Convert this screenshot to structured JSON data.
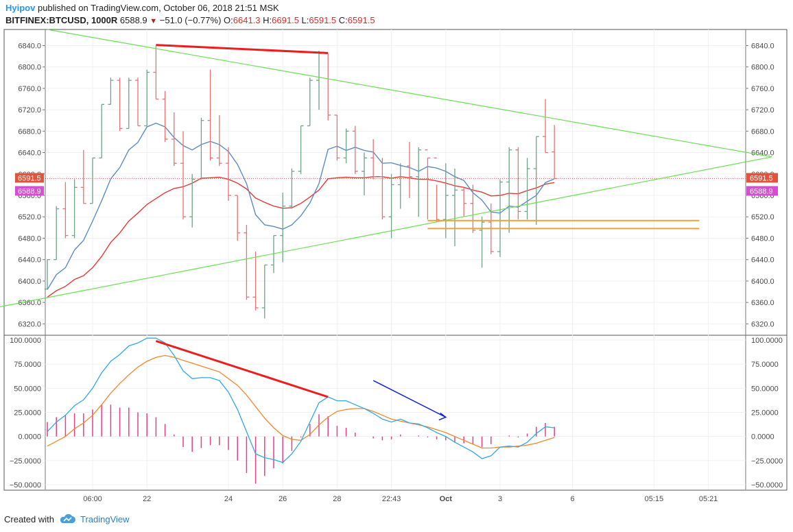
{
  "header": {
    "author": "Hyipov",
    "published_text": "published on TradingView.com, October 06, 2018 21:51 MSK",
    "symbol": "BITFINEX:BTCUSD, 1000R",
    "last": "6588.9",
    "change": "−51.0 (−0.77%)",
    "o_label": "O:",
    "o_value": "6641.3",
    "h_label": "H:",
    "h_value": "6691.5",
    "l_label": "L:",
    "l_value": "6591.5",
    "c_label": "C:",
    "c_value": "6591.5"
  },
  "footer": {
    "created_with": "Created with",
    "brand": "TradingView"
  },
  "colors": {
    "bull": "#6fa287",
    "bear": "#e57373",
    "ma_fast": "#5b8cc4",
    "ma_slow": "#e53935",
    "triangle": "#66e04f",
    "divergence": "#ee1c1c",
    "support": "#f0a030",
    "macd": "#2ea8e8",
    "signal": "#f5862a",
    "hist": "#e0408a",
    "arrow": "#1020e0",
    "tag_red": "#e0533d",
    "tag_magenta": "#d64fd0"
  },
  "chart_data": [
    {
      "type": "ohlc",
      "ylim": [
        6300,
        6870
      ],
      "yticks": [
        "6840.0",
        "6800.0",
        "6760.0",
        "6720.0",
        "6680.0",
        "6640.0",
        "6600.0",
        "6560.0",
        "6520.0",
        "6480.0",
        "6440.0",
        "6400.0",
        "6360.0",
        "6320.0"
      ],
      "xticks": [
        "06:00",
        "22",
        "24",
        "26",
        "28",
        "22:43",
        "Oct",
        "3",
        "6",
        "05:15",
        "05:21"
      ],
      "price_tags": [
        {
          "label": "6591.5",
          "value": 6591.5,
          "color": "tag_red"
        },
        {
          "label": "6588.9",
          "value": 6588.9,
          "color": "tag_magenta"
        }
      ],
      "bars": [
        [
          6385,
          6440,
          6385,
          6440
        ],
        [
          6440,
          6540,
          6440,
          6535
        ],
        [
          6535,
          6585,
          6480,
          6485
        ],
        [
          6485,
          6590,
          6480,
          6575
        ],
        [
          6575,
          6645,
          6545,
          6545
        ],
        [
          6545,
          6630,
          6545,
          6630
        ],
        [
          6630,
          6730,
          6630,
          6730
        ],
        [
          6730,
          6780,
          6730,
          6775
        ],
        [
          6775,
          6780,
          6680,
          6685
        ],
        [
          6685,
          6780,
          6685,
          6775
        ],
        [
          6775,
          6780,
          6690,
          6690
        ],
        [
          6690,
          6795,
          6690,
          6790
        ],
        [
          6790,
          6840,
          6740,
          6740
        ],
        [
          6740,
          6755,
          6660,
          6665
        ],
        [
          6665,
          6715,
          6615,
          6620
        ],
        [
          6620,
          6680,
          6515,
          6520
        ],
        [
          6520,
          6600,
          6500,
          6590
        ],
        [
          6590,
          6705,
          6590,
          6700
        ],
        [
          6700,
          6795,
          6625,
          6630
        ],
        [
          6630,
          6710,
          6615,
          6620
        ],
        [
          6620,
          6650,
          6550,
          6560
        ],
        [
          6560,
          6560,
          6475,
          6490
        ],
        [
          6490,
          6505,
          6365,
          6370
        ],
        [
          6370,
          6455,
          6345,
          6350
        ],
        [
          6350,
          6430,
          6330,
          6430
        ],
        [
          6430,
          6485,
          6415,
          6485
        ],
        [
          6485,
          6565,
          6435,
          6540
        ],
        [
          6540,
          6610,
          6535,
          6605
        ],
        [
          6605,
          6690,
          6600,
          6690
        ],
        [
          6690,
          6780,
          6690,
          6775
        ],
        [
          6775,
          6830,
          6720,
          6825
        ],
        [
          6825,
          6825,
          6700,
          6710
        ],
        [
          6710,
          6710,
          6625,
          6630
        ],
        [
          6630,
          6685,
          6620,
          6680
        ],
        [
          6680,
          6690,
          6600,
          6605
        ],
        [
          6605,
          6640,
          6560,
          6630
        ],
        [
          6630,
          6665,
          6590,
          6595
        ],
        [
          6595,
          6630,
          6515,
          6520
        ],
        [
          6520,
          6600,
          6480,
          6580
        ],
        [
          6580,
          6620,
          6535,
          6615
        ],
        [
          6615,
          6660,
          6555,
          6595
        ],
        [
          6595,
          6650,
          6520,
          6645
        ],
        [
          6645,
          6630,
          6515,
          6630
        ],
        [
          6630,
          6580,
          6510,
          6515
        ],
        [
          6515,
          6620,
          6480,
          6560
        ],
        [
          6560,
          6610,
          6465,
          6570
        ],
        [
          6570,
          6575,
          6520,
          6545
        ],
        [
          6545,
          6580,
          6490,
          6495
        ],
        [
          6495,
          6520,
          6425,
          6510
        ],
        [
          6510,
          6545,
          6450,
          6455
        ],
        [
          6455,
          6590,
          6445,
          6585
        ],
        [
          6585,
          6650,
          6490,
          6645
        ],
        [
          6645,
          6650,
          6515,
          6530
        ],
        [
          6530,
          6630,
          6515,
          6610
        ],
        [
          6610,
          6670,
          6505,
          6670
        ],
        [
          6670,
          6740,
          6640,
          6640
        ],
        [
          6641.3,
          6691.5,
          6591.5,
          6591.5
        ]
      ],
      "ma_fast": [
        6384,
        6412,
        6425,
        6458,
        6476,
        6512,
        6550,
        6591,
        6612,
        6645,
        6659,
        6688,
        6695,
        6688,
        6668,
        6653,
        6645,
        6655,
        6661,
        6655,
        6642,
        6618,
        6582,
        6524,
        6505,
        6502,
        6497,
        6505,
        6522,
        6546,
        6582,
        6646,
        6652,
        6644,
        6650,
        6644,
        6641,
        6620,
        6621,
        6616,
        6612,
        6605,
        6614,
        6611,
        6605,
        6595,
        6588,
        6565,
        6551,
        6529,
        6527,
        6540,
        6538,
        6549,
        6560,
        6584,
        6591
      ],
      "ma_slow": [
        6370,
        6382,
        6390,
        6403,
        6410,
        6425,
        6446,
        6472,
        6490,
        6512,
        6527,
        6543,
        6554,
        6565,
        6573,
        6576,
        6583,
        6592,
        6593,
        6594,
        6590,
        6583,
        6572,
        6555,
        6547,
        6540,
        6536,
        6537,
        6545,
        6557,
        6570,
        6591,
        6593,
        6594,
        6593,
        6593,
        6595,
        6595,
        6592,
        6595,
        6593,
        6590,
        6590,
        6587,
        6583,
        6578,
        6575,
        6570,
        6566,
        6559,
        6560,
        6564,
        6563,
        6569,
        6574,
        6581,
        6584
      ],
      "annotations": {
        "triangle": {
          "top": [
            6870,
            0
          ],
          "apex": [
            6632,
            80
          ],
          "bottom": [
            6300,
            -21
          ]
        },
        "divergence_line": {
          "from": [
            12,
            6841
          ],
          "to": [
            31,
            6826
          ]
        },
        "support_lines": [
          {
            "from": [
              42,
              6513
            ],
            "to": [
              72,
              6513
            ]
          },
          {
            "from": [
              42,
              6498
            ],
            "to": [
              72,
              6498
            ]
          }
        ]
      }
    },
    {
      "type": "macd",
      "ylim": [
        -55,
        105
      ],
      "yticks": [
        "100.0000",
        "75.0000",
        "50.0000",
        "25.0000",
        "0.0000",
        "−25.0000",
        "−50.0000"
      ],
      "macd": [
        5,
        15,
        22,
        32,
        38,
        50,
        66,
        78,
        85,
        94,
        97,
        102,
        102,
        97,
        84,
        68,
        60,
        61,
        61,
        58,
        46,
        28,
        5,
        -18,
        -22,
        -24,
        -27,
        -18,
        -5,
        15,
        35,
        41,
        37,
        37,
        33,
        29,
        24,
        18,
        15,
        18,
        14,
        13,
        9,
        4,
        0,
        -6,
        -11,
        -16,
        -23,
        -20,
        -11,
        -10,
        -11,
        -6,
        3,
        10,
        9
      ],
      "signal": [
        -10,
        -5,
        0,
        8,
        14,
        22,
        33,
        45,
        55,
        64,
        72,
        78,
        82,
        84,
        82,
        79,
        76,
        73,
        70,
        67,
        60,
        53,
        43,
        31,
        19,
        9,
        1,
        -3,
        -4,
        2,
        12,
        20,
        26,
        28,
        29,
        29,
        26,
        22,
        18,
        16,
        14,
        12,
        10,
        7,
        4,
        0,
        -4,
        -8,
        -12,
        -12,
        -11,
        -11,
        -10,
        -9,
        -7,
        -4,
        -1
      ],
      "histogram": [
        15,
        20,
        22,
        24,
        24,
        28,
        33,
        33,
        30,
        30,
        25,
        24,
        20,
        13,
        2,
        -11,
        -16,
        -12,
        -9,
        -9,
        -14,
        -25,
        -38,
        -49,
        -41,
        -33,
        -28,
        -15,
        -1,
        13,
        23,
        21,
        11,
        9,
        4,
        0,
        -2,
        -4,
        -3,
        2,
        0,
        1,
        -1,
        -3,
        -4,
        -6,
        -7,
        -8,
        -11,
        -8,
        0,
        1,
        -1,
        3,
        10,
        14,
        10
      ],
      "annotations": {
        "divergence_line": {
          "from": [
            12,
            99
          ],
          "to": [
            31,
            41
          ]
        },
        "trend_arrow": {
          "from": [
            36,
            58
          ],
          "to": [
            44,
            20
          ]
        }
      }
    }
  ]
}
